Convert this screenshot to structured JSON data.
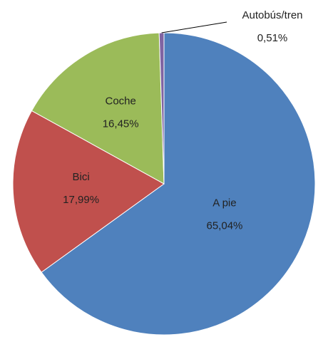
{
  "chart_data": {
    "type": "pie",
    "categories": [
      "A pie",
      "Bici",
      "Coche",
      "Autobús/tren"
    ],
    "values": [
      65.04,
      17.99,
      16.45,
      0.51
    ],
    "value_labels": [
      "65,04%",
      "17,99%",
      "16,45%",
      "0,51%"
    ],
    "colors": [
      "#4f81bd",
      "#c0504d",
      "#9bbb59",
      "#8064a2"
    ]
  }
}
